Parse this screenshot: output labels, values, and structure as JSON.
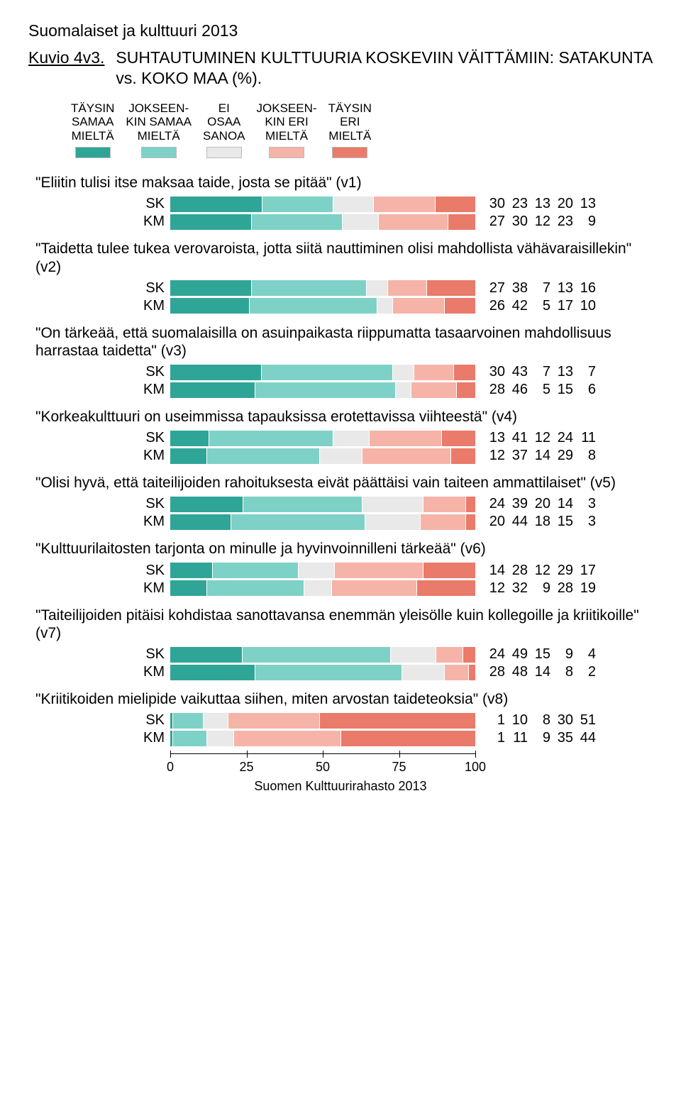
{
  "report_title": "Suomalaiset ja kulttuuri 2013",
  "figure_number": "Kuvio 4v3.",
  "figure_title": "SUHTAUTUMINEN KULTTUURIA KOSKEVIIN VÄITTÄMIIN: SATAKUNTA vs. KOKO MAA (%).",
  "legend": [
    {
      "label_l1": "TÄYSIN",
      "label_l2": "SAMAA",
      "label_l3": "MIELTÄ",
      "color": "#2fa597"
    },
    {
      "label_l1": "JOKSEEN-",
      "label_l2": "KIN SAMAA",
      "label_l3": "MIELTÄ",
      "color": "#7ed1c6"
    },
    {
      "label_l1": "EI",
      "label_l2": "OSAA",
      "label_l3": "SANOA",
      "color": "#e9e9e9"
    },
    {
      "label_l1": "JOKSEEN-",
      "label_l2": "KIN ERI",
      "label_l3": "MIELTÄ",
      "color": "#f6b3a8"
    },
    {
      "label_l1": "TÄYSIN",
      "label_l2": "ERI",
      "label_l3": "MIELTÄ",
      "color": "#ea7a69"
    }
  ],
  "colors": [
    "#2fa597",
    "#7ed1c6",
    "#e9e9e9",
    "#f6b3a8",
    "#ea7a69"
  ],
  "questions": [
    {
      "text": "\"Eliitin tulisi itse maksaa taide, josta se pitää\" (v1)",
      "rows": [
        {
          "label": "SK",
          "values": [
            30,
            23,
            13,
            20,
            13
          ]
        },
        {
          "label": "KM",
          "values": [
            27,
            30,
            12,
            23,
            9
          ]
        }
      ]
    },
    {
      "text": "\"Taidetta tulee tukea verovaroista, jotta siitä nauttiminen olisi mahdollista vähävaraisillekin\" (v2)",
      "rows": [
        {
          "label": "SK",
          "values": [
            27,
            38,
            7,
            13,
            16
          ]
        },
        {
          "label": "KM",
          "values": [
            26,
            42,
            5,
            17,
            10
          ]
        }
      ]
    },
    {
      "text": "\"On tärkeää, että suomalaisilla on asuinpaikasta riippumatta tasaarvoinen mahdollisuus harrastaa taidetta\" (v3)",
      "rows": [
        {
          "label": "SK",
          "values": [
            30,
            43,
            7,
            13,
            7
          ]
        },
        {
          "label": "KM",
          "values": [
            28,
            46,
            5,
            15,
            6
          ]
        }
      ]
    },
    {
      "text": "\"Korkeakulttuuri on useimmissa tapauksissa erotettavissa viihteestä\" (v4)",
      "rows": [
        {
          "label": "SK",
          "values": [
            13,
            41,
            12,
            24,
            11
          ]
        },
        {
          "label": "KM",
          "values": [
            12,
            37,
            14,
            29,
            8
          ]
        }
      ]
    },
    {
      "text": "\"Olisi hyvä, että taiteilijoiden rahoituksesta eivät päättäisi vain taiteen ammattilaiset\" (v5)",
      "rows": [
        {
          "label": "SK",
          "values": [
            24,
            39,
            20,
            14,
            3
          ]
        },
        {
          "label": "KM",
          "values": [
            20,
            44,
            18,
            15,
            3
          ]
        }
      ]
    },
    {
      "text": "\"Kulttuurilaitosten tarjonta on minulle ja hyvinvoinnilleni tärkeää\" (v6)",
      "rows": [
        {
          "label": "SK",
          "values": [
            14,
            28,
            12,
            29,
            17
          ]
        },
        {
          "label": "KM",
          "values": [
            12,
            32,
            9,
            28,
            19
          ]
        }
      ]
    },
    {
      "text": "\"Taiteilijoiden pitäisi kohdistaa sanottavansa enemmän yleisölle kuin kollegoille ja kriitikoille\" (v7)",
      "rows": [
        {
          "label": "SK",
          "values": [
            24,
            49,
            15,
            9,
            4
          ]
        },
        {
          "label": "KM",
          "values": [
            28,
            48,
            14,
            8,
            2
          ]
        }
      ]
    },
    {
      "text": "\"Kriitikoiden mielipide vaikuttaa siihen, miten arvostan taideteoksia\" (v8)",
      "rows": [
        {
          "label": "SK",
          "values": [
            1,
            10,
            8,
            30,
            51
          ]
        },
        {
          "label": "KM",
          "values": [
            1,
            11,
            9,
            35,
            44
          ]
        }
      ]
    }
  ],
  "axis": {
    "min": 0,
    "max": 100,
    "ticks": [
      0,
      25,
      50,
      75,
      100
    ]
  },
  "footer": "Suomen Kulttuurirahasto 2013"
}
